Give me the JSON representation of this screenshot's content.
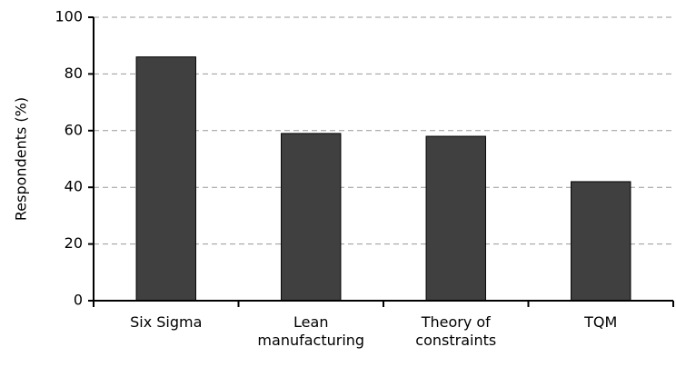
{
  "chart_data": {
    "type": "bar",
    "y_label": "Respondents (%)",
    "categories": [
      "Six Sigma",
      "Lean manufacturing",
      "Theory of constraints",
      "TQM"
    ],
    "values": [
      86,
      59,
      58,
      42
    ],
    "color": "#404040",
    "ylim": [
      0,
      100
    ],
    "yticks": [
      0,
      20,
      40,
      60,
      80,
      100
    ],
    "grid": true
  }
}
